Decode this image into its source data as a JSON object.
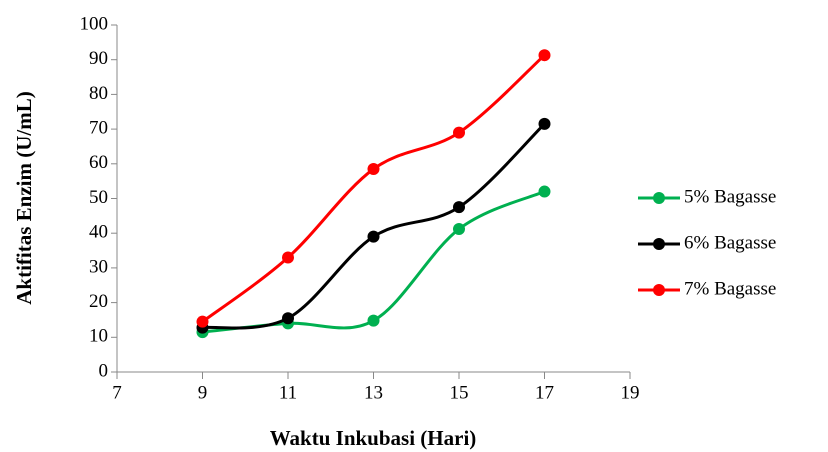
{
  "chart_data": {
    "type": "line",
    "smooth": true,
    "x_label": "Waktu Inkubasi (Hari)",
    "y_label": "Aktifitas Enzim (U/mL)",
    "x": [
      9,
      11,
      13,
      15,
      17
    ],
    "series": [
      {
        "name": "5% Bagasse",
        "color": "#00b050",
        "values": [
          11.5,
          14,
          14.8,
          41.2,
          52
        ]
      },
      {
        "name": "6% Bagasse",
        "color": "#000000",
        "values": [
          12.8,
          15.5,
          39,
          47.5,
          71.5
        ]
      },
      {
        "name": "7% Bagasse",
        "color": "#ff0000",
        "values": [
          14.5,
          33,
          58.5,
          69,
          91.3
        ]
      }
    ],
    "xlim": [
      7,
      19
    ],
    "xticks": [
      7,
      9,
      11,
      13,
      15,
      17,
      19
    ],
    "ylim": [
      0,
      100
    ],
    "yticks": [
      0,
      10,
      20,
      30,
      40,
      50,
      60,
      70,
      80,
      90,
      100
    ],
    "legend": "right"
  }
}
